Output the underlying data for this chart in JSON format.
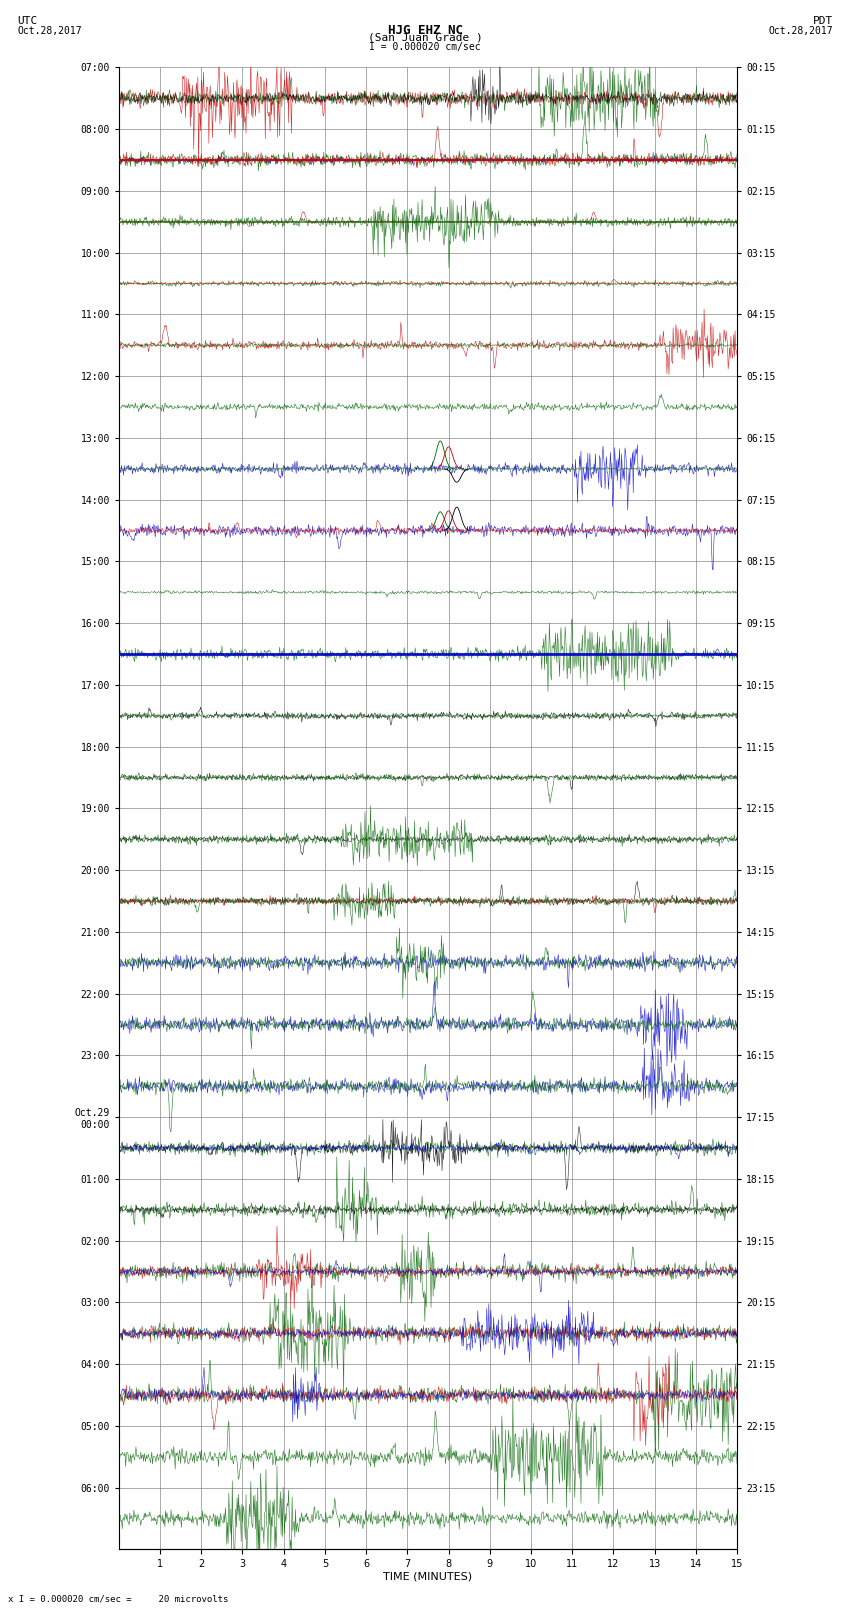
{
  "title_line1": "HJG EHZ NC",
  "title_line2": "(San Juan Grade )",
  "scale_label": "I = 0.000020 cm/sec",
  "left_label": "UTC",
  "right_label": "PDT",
  "left_date": "Oct.28,2017",
  "right_date": "Oct.28,2017",
  "bottom_label": "TIME (MINUTES)",
  "bottom_note": "x I = 0.000020 cm/sec =     20 microvolts",
  "left_times": [
    "07:00",
    "08:00",
    "09:00",
    "10:00",
    "11:00",
    "12:00",
    "13:00",
    "14:00",
    "15:00",
    "16:00",
    "17:00",
    "18:00",
    "19:00",
    "20:00",
    "21:00",
    "22:00",
    "23:00",
    "Oct.29\n00:00",
    "01:00",
    "02:00",
    "03:00",
    "04:00",
    "05:00",
    "06:00"
  ],
  "right_times": [
    "00:15",
    "01:15",
    "02:15",
    "03:15",
    "04:15",
    "05:15",
    "06:15",
    "07:15",
    "08:15",
    "09:15",
    "10:15",
    "11:15",
    "12:15",
    "13:15",
    "14:15",
    "15:15",
    "16:15",
    "17:15",
    "18:15",
    "19:15",
    "20:15",
    "21:15",
    "22:15",
    "23:15"
  ],
  "x_ticks": [
    1,
    2,
    3,
    4,
    5,
    6,
    7,
    8,
    9,
    10,
    11,
    12,
    13,
    14,
    15
  ],
  "fig_width": 8.5,
  "fig_height": 16.13,
  "bg_color": "#ffffff",
  "grid_color": "#888888",
  "num_rows": 24,
  "colors": {
    "black": "#000000",
    "red": "#cc0000",
    "green": "#006600",
    "blue": "#0000cc"
  }
}
